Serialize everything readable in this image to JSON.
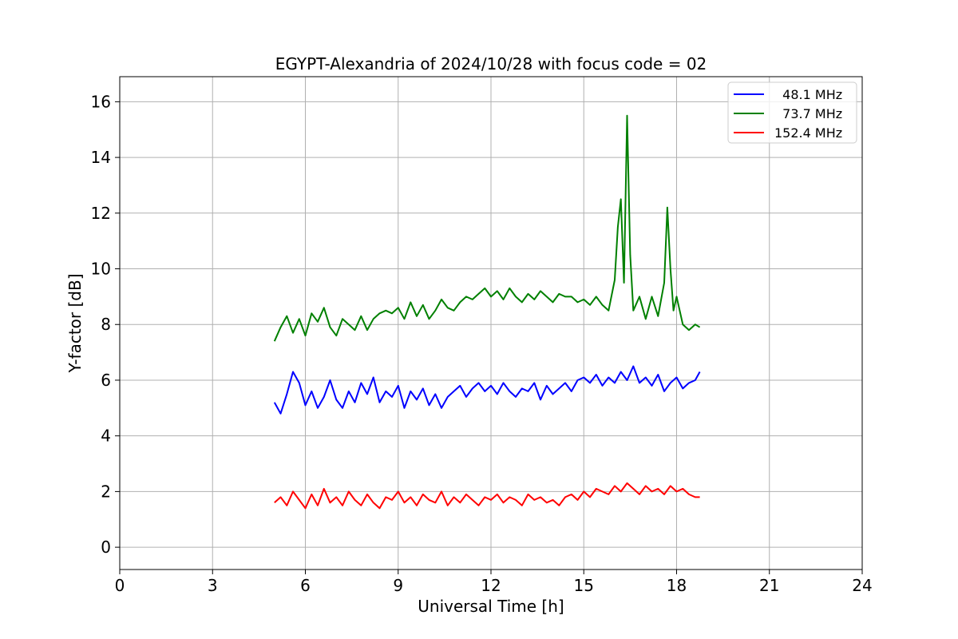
{
  "chart_data": {
    "type": "line",
    "title": "EGYPT-Alexandria of 2024/10/28 with focus code = 02",
    "xlabel": "Universal Time [h]",
    "ylabel": "Y-factor [dB]",
    "xlim": [
      0,
      24
    ],
    "ylim": [
      -0.8,
      16.9
    ],
    "xticks": [
      0,
      3,
      6,
      9,
      12,
      15,
      18,
      21,
      24
    ],
    "yticks": [
      0,
      2,
      4,
      6,
      8,
      10,
      12,
      14,
      16
    ],
    "grid": true,
    "legend_position": "top-right",
    "series": [
      {
        "name": "  48.1 MHz",
        "color": "#0000ff",
        "x": [
          5.0,
          5.2,
          5.4,
          5.6,
          5.8,
          6.0,
          6.2,
          6.4,
          6.6,
          6.8,
          7.0,
          7.2,
          7.4,
          7.6,
          7.8,
          8.0,
          8.2,
          8.4,
          8.6,
          8.8,
          9.0,
          9.2,
          9.4,
          9.6,
          9.8,
          10.0,
          10.2,
          10.4,
          10.6,
          10.8,
          11.0,
          11.2,
          11.4,
          11.6,
          11.8,
          12.0,
          12.2,
          12.4,
          12.6,
          12.8,
          13.0,
          13.2,
          13.4,
          13.6,
          13.8,
          14.0,
          14.2,
          14.4,
          14.6,
          14.8,
          15.0,
          15.2,
          15.4,
          15.6,
          15.8,
          16.0,
          16.2,
          16.4,
          16.6,
          16.8,
          17.0,
          17.2,
          17.4,
          17.6,
          17.8,
          18.0,
          18.2,
          18.4,
          18.6,
          18.75
        ],
        "y": [
          5.2,
          4.8,
          5.5,
          6.3,
          5.9,
          5.1,
          5.6,
          5.0,
          5.4,
          6.0,
          5.3,
          5.0,
          5.6,
          5.2,
          5.9,
          5.5,
          6.1,
          5.2,
          5.6,
          5.4,
          5.8,
          5.0,
          5.6,
          5.3,
          5.7,
          5.1,
          5.5,
          5.0,
          5.4,
          5.6,
          5.8,
          5.4,
          5.7,
          5.9,
          5.6,
          5.8,
          5.5,
          5.9,
          5.6,
          5.4,
          5.7,
          5.6,
          5.9,
          5.3,
          5.8,
          5.5,
          5.7,
          5.9,
          5.6,
          6.0,
          6.1,
          5.9,
          6.2,
          5.8,
          6.1,
          5.9,
          6.3,
          6.0,
          6.5,
          5.9,
          6.1,
          5.8,
          6.2,
          5.6,
          5.9,
          6.1,
          5.7,
          5.9,
          6.0,
          6.3
        ]
      },
      {
        "name": "  73.7 MHz",
        "color": "#008000",
        "x": [
          5.0,
          5.2,
          5.4,
          5.6,
          5.8,
          6.0,
          6.2,
          6.4,
          6.6,
          6.8,
          7.0,
          7.2,
          7.4,
          7.6,
          7.8,
          8.0,
          8.2,
          8.4,
          8.6,
          8.8,
          9.0,
          9.2,
          9.4,
          9.6,
          9.8,
          10.0,
          10.2,
          10.4,
          10.6,
          10.8,
          11.0,
          11.2,
          11.4,
          11.6,
          11.8,
          12.0,
          12.2,
          12.4,
          12.6,
          12.8,
          13.0,
          13.2,
          13.4,
          13.6,
          13.8,
          14.0,
          14.2,
          14.4,
          14.6,
          14.8,
          15.0,
          15.2,
          15.4,
          15.6,
          15.8,
          16.0,
          16.1,
          16.2,
          16.3,
          16.4,
          16.5,
          16.6,
          16.8,
          17.0,
          17.2,
          17.4,
          17.6,
          17.7,
          17.8,
          17.9,
          18.0,
          18.2,
          18.4,
          18.6,
          18.75
        ],
        "y": [
          7.4,
          7.9,
          8.3,
          7.7,
          8.2,
          7.6,
          8.4,
          8.1,
          8.6,
          7.9,
          7.6,
          8.2,
          8.0,
          7.8,
          8.3,
          7.8,
          8.2,
          8.4,
          8.5,
          8.4,
          8.6,
          8.2,
          8.8,
          8.3,
          8.7,
          8.2,
          8.5,
          8.9,
          8.6,
          8.5,
          8.8,
          9.0,
          8.9,
          9.1,
          9.3,
          9.0,
          9.2,
          8.9,
          9.3,
          9.0,
          8.8,
          9.1,
          8.9,
          9.2,
          9.0,
          8.8,
          9.1,
          9.0,
          9.0,
          8.8,
          8.9,
          8.7,
          9.0,
          8.7,
          8.5,
          9.6,
          11.5,
          12.5,
          9.5,
          15.5,
          10.5,
          8.5,
          9.0,
          8.2,
          9.0,
          8.3,
          9.5,
          12.2,
          10.0,
          8.5,
          9.0,
          8.0,
          7.8,
          8.0,
          7.9
        ]
      },
      {
        "name": "152.4 MHz",
        "color": "#ff0000",
        "x": [
          5.0,
          5.2,
          5.4,
          5.6,
          5.8,
          6.0,
          6.2,
          6.4,
          6.6,
          6.8,
          7.0,
          7.2,
          7.4,
          7.6,
          7.8,
          8.0,
          8.2,
          8.4,
          8.6,
          8.8,
          9.0,
          9.2,
          9.4,
          9.6,
          9.8,
          10.0,
          10.2,
          10.4,
          10.6,
          10.8,
          11.0,
          11.2,
          11.4,
          11.6,
          11.8,
          12.0,
          12.2,
          12.4,
          12.6,
          12.8,
          13.0,
          13.2,
          13.4,
          13.6,
          13.8,
          14.0,
          14.2,
          14.4,
          14.6,
          14.8,
          15.0,
          15.2,
          15.4,
          15.6,
          15.8,
          16.0,
          16.2,
          16.4,
          16.6,
          16.8,
          17.0,
          17.2,
          17.4,
          17.6,
          17.8,
          18.0,
          18.2,
          18.4,
          18.6,
          18.75
        ],
        "y": [
          1.6,
          1.8,
          1.5,
          2.0,
          1.7,
          1.4,
          1.9,
          1.5,
          2.1,
          1.6,
          1.8,
          1.5,
          2.0,
          1.7,
          1.5,
          1.9,
          1.6,
          1.4,
          1.8,
          1.7,
          2.0,
          1.6,
          1.8,
          1.5,
          1.9,
          1.7,
          1.6,
          2.0,
          1.5,
          1.8,
          1.6,
          1.9,
          1.7,
          1.5,
          1.8,
          1.7,
          1.9,
          1.6,
          1.8,
          1.7,
          1.5,
          1.9,
          1.7,
          1.8,
          1.6,
          1.7,
          1.5,
          1.8,
          1.9,
          1.7,
          2.0,
          1.8,
          2.1,
          2.0,
          1.9,
          2.2,
          2.0,
          2.3,
          2.1,
          1.9,
          2.2,
          2.0,
          2.1,
          1.9,
          2.2,
          2.0,
          2.1,
          1.9,
          1.8,
          1.8
        ]
      }
    ]
  }
}
